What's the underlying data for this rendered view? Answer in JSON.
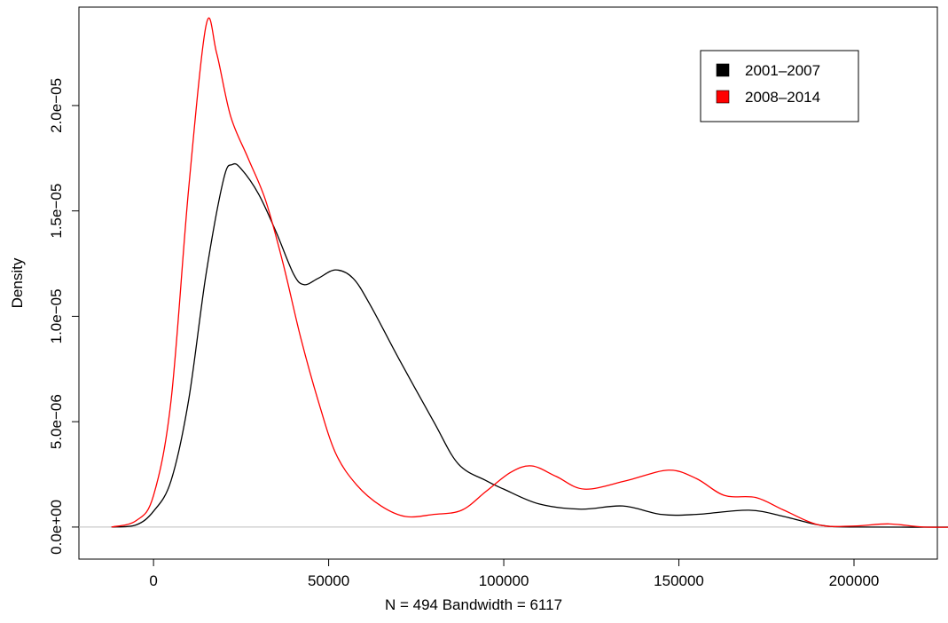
{
  "chart_data": {
    "type": "line",
    "x_label": "N = 494   Bandwidth = 6117",
    "y_label": "Density",
    "xlim": [
      -21300,
      223800
    ],
    "ylim": [
      -1.52e-06,
      2.467e-05
    ],
    "xticks": [
      0,
      50000,
      100000,
      150000,
      200000
    ],
    "yticks": [
      {
        "value": 0,
        "label": "0.0e+00"
      },
      {
        "value": 5e-06,
        "label": "5.0e−06"
      },
      {
        "value": 1e-05,
        "label": "1.0e−05"
      },
      {
        "value": 1.5e-05,
        "label": "1.5e−05"
      },
      {
        "value": 2e-05,
        "label": "2.0e−05"
      }
    ],
    "legend_position": "topright",
    "series": [
      {
        "name": "2001–2007",
        "color": "#000000",
        "x": [
          -12000,
          -5000,
          0,
          5000,
          10000,
          15000,
          20000,
          22500,
          25000,
          30000,
          35000,
          40000,
          43000,
          47000,
          52000,
          57000,
          62000,
          70000,
          80000,
          87000,
          95000,
          100000,
          110000,
          122000,
          134000,
          145000,
          155000,
          170000,
          180000,
          190000,
          200000,
          233000
        ],
        "values": [
          0,
          1e-07,
          7.5e-07,
          2.2e-06,
          6e-06,
          1.2e-05,
          1.65e-05,
          1.72e-05,
          1.7e-05,
          1.58e-05,
          1.4e-05,
          1.2e-05,
          1.15e-05,
          1.18e-05,
          1.22e-05,
          1.18e-05,
          1.05e-05,
          8e-06,
          5e-06,
          3e-06,
          2.2e-06,
          1.8e-06,
          1.1e-06,
          8.5e-07,
          1e-06,
          6e-07,
          6e-07,
          8e-07,
          5e-07,
          1e-07,
          0,
          0
        ]
      },
      {
        "name": "2008–2014",
        "color": "#ff0000",
        "x": [
          -12000,
          -5000,
          0,
          5000,
          10000,
          15000,
          18000,
          22000,
          27000,
          32000,
          37000,
          42000,
          47000,
          52000,
          58000,
          65000,
          72000,
          80000,
          88000,
          95000,
          102000,
          108000,
          115000,
          123000,
          135000,
          147000,
          155000,
          163000,
          172000,
          180000,
          190000,
          200000,
          210000,
          220000,
          233000
        ],
        "values": [
          0,
          3e-07,
          1.5e-06,
          6e-06,
          1.6e-05,
          2.38e-05,
          2.25e-05,
          1.95e-05,
          1.75e-05,
          1.55e-05,
          1.25e-05,
          9e-06,
          6e-06,
          3.5e-06,
          2e-06,
          1e-06,
          5e-07,
          6e-07,
          8e-07,
          1.7e-06,
          2.6e-06,
          2.9e-06,
          2.4e-06,
          1.8e-06,
          2.2e-06,
          2.7e-06,
          2.3e-06,
          1.5e-06,
          1.4e-06,
          8e-07,
          1e-07,
          5e-08,
          1.5e-07,
          0,
          0
        ]
      }
    ]
  }
}
